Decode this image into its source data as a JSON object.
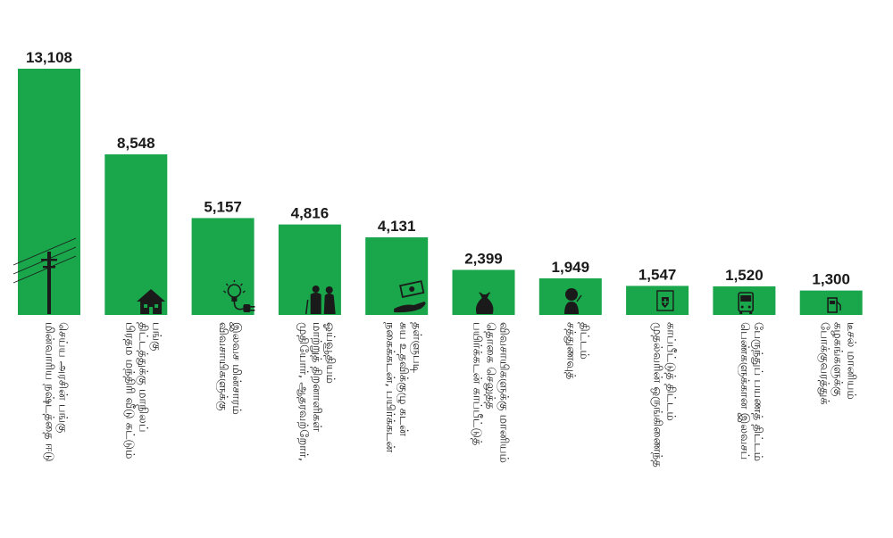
{
  "chart_data": {
    "type": "bar",
    "title": "",
    "xlabel": "",
    "ylabel": "",
    "ylim": [
      0,
      13108
    ],
    "bar_color": "#1aa64b",
    "categories": [
      [
        "மின்வாரிய நஷ்டத்தை ஈடு",
        "செய்ய அரசின் பங்கு"
      ],
      [
        "பிரதம மந்திரி வீடு கட்டும்",
        "திட்டத்துக்கு மாநிலப்",
        "பங்கு"
      ],
      [
        "விவசாயிகளுக்கு",
        "இலவச மின்சாரம்"
      ],
      [
        "முதியோர், ஆதரவற்றோர்,",
        "மாற்றுத் திறனாளிகள்",
        "ஓய்வூதியம்"
      ],
      [
        "நகைக்கடன், பயிர்க்கடன்",
        "சுய உதவிக்குழு கடன்",
        "தள்ளுபடி"
      ],
      [
        "பயிர்க்கடன் காப்பீட்டுத்",
        "தொகை செலுத்த",
        "விவசாயிகளுக்கு மானியம்"
      ],
      [
        "சத்துணவுத்",
        "திட்டம்"
      ],
      [
        "முதல்வரின் ஒருங்கிணைந்த",
        "காப்பீட்டுத் திட்டம்"
      ],
      [
        "பெண்களுக்கான இலவசப்",
        "பேருந்துப் பயணத் திட்டம்"
      ],
      [
        "போக்குவரத்துக்",
        "கழகங்களுக்கு",
        "டீசல் மானியம்"
      ]
    ],
    "values": [
      13108,
      8548,
      5157,
      4816,
      4131,
      2399,
      1949,
      1547,
      1520,
      1300
    ],
    "value_labels": [
      "13,108",
      "8,548",
      "5,157",
      "4,816",
      "4,131",
      "2,399",
      "1,949",
      "1,547",
      "1,520",
      "1,300"
    ],
    "icons": [
      "power-pylon-icon",
      "house-icon",
      "bulb-plug-icon",
      "elderly-couple-icon",
      "money-hand-icon",
      "grain-sack-icon",
      "child-eating-icon",
      "health-shield-icon",
      "bus-icon",
      "fuel-pump-icon"
    ]
  }
}
